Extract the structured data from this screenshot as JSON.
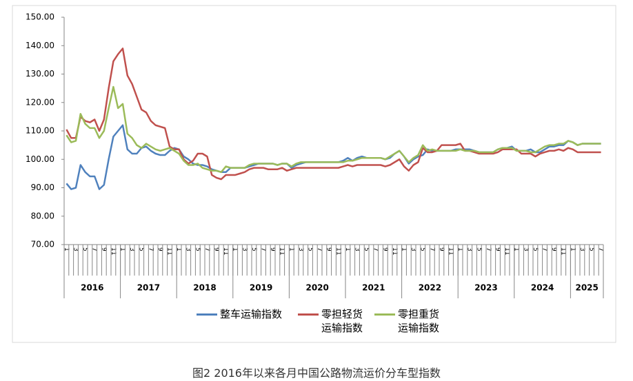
{
  "chart_data": {
    "type": "line",
    "title": "图2 2016年以来各月中国公路物流运价分车型指数",
    "categories": [
      "1",
      null,
      "3",
      null,
      "5",
      null,
      "7",
      null,
      "9",
      null,
      "11",
      null,
      "1",
      null,
      "3",
      null,
      "5",
      null,
      "7",
      null,
      "9",
      null,
      "11",
      null,
      "1",
      null,
      "3",
      null,
      "5",
      null,
      "7",
      null,
      "9",
      null,
      "11",
      null,
      "1",
      null,
      "3",
      null,
      "5",
      null,
      "7",
      null,
      "9",
      null,
      "11",
      null,
      "1",
      null,
      "3",
      null,
      "5",
      null,
      "7",
      null,
      "9",
      null,
      "11",
      null,
      "1",
      null,
      "3",
      null,
      "5",
      null,
      "7",
      null,
      "9",
      null,
      "11",
      null,
      "1",
      null,
      "3",
      null,
      "5",
      null,
      "7",
      null,
      "9",
      null,
      "11",
      null,
      "1",
      null,
      "3",
      null,
      "5",
      null,
      "7",
      null,
      "9",
      null,
      "11",
      null,
      "1",
      null,
      "3",
      null,
      "5",
      null,
      "7",
      null,
      "9",
      null,
      "11",
      null,
      "1",
      null,
      "3",
      null,
      "5",
      null,
      "7"
    ],
    "years": [
      "2016",
      "2017",
      "2018",
      "2019",
      "2020",
      "2021",
      "2022",
      "2023",
      "2024",
      "2025"
    ],
    "series": [
      {
        "name": "整车运输指数",
        "color": "#4f81bd",
        "values": [
          91.5,
          89.5,
          90,
          98,
          95.5,
          94,
          94,
          89.5,
          91,
          100,
          108,
          110,
          112,
          103.5,
          102,
          102,
          104,
          104.5,
          103,
          102,
          101.5,
          101.5,
          103,
          104,
          103.5,
          101,
          100,
          98.5,
          98,
          98,
          97.5,
          96.5,
          96,
          95.5,
          95.5,
          97,
          97,
          97,
          97,
          97.5,
          98,
          98.5,
          98.5,
          98.5,
          98.5,
          98,
          98.5,
          98.5,
          97,
          98,
          98.5,
          99,
          99,
          99,
          99,
          99,
          99,
          99,
          99,
          99.5,
          100.5,
          99.5,
          100.5,
          101,
          100.5,
          100.5,
          100.5,
          100.5,
          100,
          100.5,
          102,
          103,
          101,
          98.5,
          100,
          101,
          101.5,
          103.5,
          103,
          103,
          103,
          103,
          103,
          103.5,
          103.5,
          103.5,
          103.5,
          103,
          102.5,
          102.5,
          102.5,
          102.5,
          103.5,
          104,
          104,
          104.5,
          103,
          103,
          103,
          103.5,
          102.5,
          102.5,
          103.5,
          104.5,
          104.5,
          105,
          105,
          106.5,
          106,
          105,
          105.5,
          105.5,
          105.5,
          105.5,
          105.5
        ]
      },
      {
        "name": "零担轻货运输指数",
        "color": "#c0504d",
        "values": [
          110.5,
          107.5,
          107.5,
          115,
          113.5,
          113,
          114,
          110,
          114,
          125,
          134.5,
          137,
          139,
          129.5,
          126.5,
          122,
          117.5,
          116.5,
          113.5,
          112,
          111.5,
          111,
          104.5,
          103.5,
          103.5,
          100,
          98.5,
          99.5,
          102,
          102,
          101,
          94.5,
          93.5,
          93,
          94.5,
          94.5,
          94.5,
          95,
          95.5,
          96.5,
          97,
          97,
          97,
          96.5,
          96.5,
          96.5,
          97,
          96,
          96.5,
          97,
          97,
          97,
          97,
          97,
          97,
          97,
          97,
          97,
          97,
          97.5,
          98,
          97.5,
          98,
          98,
          98,
          98,
          98,
          98,
          97.5,
          98,
          99,
          100,
          97.5,
          96,
          98,
          99,
          104,
          102.5,
          102.5,
          103,
          105,
          105,
          105,
          105,
          105.5,
          103,
          103,
          102.5,
          102,
          102,
          102,
          102,
          102.5,
          103.5,
          103.5,
          103.5,
          103.5,
          102,
          102,
          102,
          101,
          102,
          102.5,
          103,
          103,
          103.5,
          103,
          104,
          103.5,
          102.5,
          102.5,
          102.5,
          102.5,
          102.5,
          102.5
        ]
      },
      {
        "name": "零担重货运输指数",
        "color": "#9bbb59",
        "values": [
          108.5,
          106,
          106.5,
          116,
          112.5,
          111,
          111,
          107.5,
          110,
          118,
          125.5,
          118,
          119.5,
          109,
          107.5,
          105,
          104,
          105.5,
          104.5,
          103.5,
          103,
          103.5,
          104,
          103,
          102,
          99.5,
          98,
          98,
          98.5,
          97,
          96.5,
          96,
          96,
          95.5,
          97.5,
          97,
          97,
          97,
          97,
          98,
          98.5,
          98.5,
          98.5,
          98.5,
          98.5,
          98,
          98.5,
          98.5,
          97.5,
          98.5,
          99,
          99,
          99,
          99,
          99,
          99,
          99,
          99,
          99,
          99,
          99.5,
          99.5,
          100,
          100.5,
          100.5,
          100.5,
          100.5,
          100.5,
          100,
          101,
          102,
          103,
          101,
          99,
          100.5,
          101.5,
          105,
          103,
          103.5,
          103,
          103,
          103,
          103,
          103,
          103.5,
          103,
          103,
          103,
          102.5,
          102.5,
          102.5,
          102.5,
          103.5,
          104,
          104,
          104,
          103,
          103,
          103,
          102.5,
          102.5,
          103.5,
          104.5,
          105,
          105,
          105.5,
          105.5,
          106.5,
          106,
          105,
          105.5,
          105.5,
          105.5,
          105.5,
          105.5
        ]
      }
    ],
    "ylim": [
      70,
      150
    ],
    "yticks": [
      {
        "value": 70,
        "label": "70.00"
      },
      {
        "value": 80,
        "label": "80.00"
      },
      {
        "value": 90,
        "label": "90.00"
      },
      {
        "value": 100,
        "label": "100.00"
      },
      {
        "value": 110,
        "label": "110.00"
      },
      {
        "value": 120,
        "label": "120.00"
      },
      {
        "value": 130,
        "label": "130.00"
      },
      {
        "value": 140,
        "label": "140.00"
      },
      {
        "value": 150,
        "label": "150.00"
      }
    ],
    "grid": false
  }
}
